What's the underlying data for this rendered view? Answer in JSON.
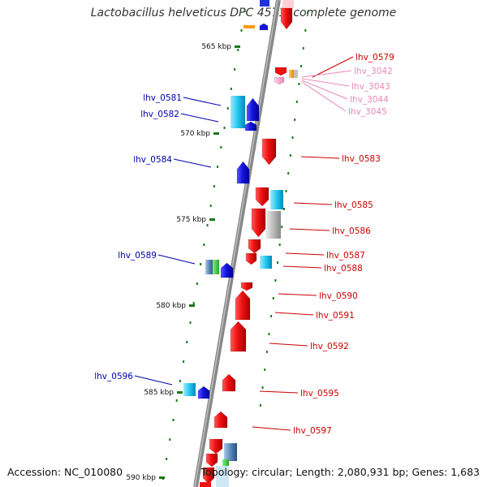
{
  "title": "Lactobacillus helveticus DPC 4571, complete genome",
  "footer": {
    "accession": "Accession: NC_010080",
    "summary": "Topology: circular; Length: 2,080,931 bp; Genes: 1,683"
  },
  "colors": {
    "forward_red": "#ee1111",
    "reverse_blue": "#1515dd",
    "label_red": "#cc0000",
    "label_blue": "#0000aa",
    "label_pink": "#e888b8",
    "cyan": "#22c8ee",
    "gray": "#bbbbbb",
    "tick_green": "#1a7a1a",
    "backbone": "#888888"
  },
  "scale_ticks": [
    {
      "label": "565 kbp"
    },
    {
      "label": "570 kbp"
    },
    {
      "label": "575 kbp"
    },
    {
      "label": "580 kbp"
    },
    {
      "label": "585 kbp"
    },
    {
      "label": "590 kbp"
    }
  ],
  "gene_labels_right": [
    {
      "label": "lhv_0579",
      "color": "red"
    },
    {
      "label": "lhv_3042",
      "color": "pink"
    },
    {
      "label": "lhv_3043",
      "color": "pink"
    },
    {
      "label": "lhv_3044",
      "color": "pink"
    },
    {
      "label": "lhv_3045",
      "color": "pink"
    },
    {
      "label": "lhv_0583",
      "color": "red"
    },
    {
      "label": "lhv_0585",
      "color": "red"
    },
    {
      "label": "lhv_0586",
      "color": "red"
    },
    {
      "label": "lhv_0587",
      "color": "red"
    },
    {
      "label": "lhv_0588",
      "color": "red"
    },
    {
      "label": "lhv_0590",
      "color": "red"
    },
    {
      "label": "lhv_0591",
      "color": "red"
    },
    {
      "label": "lhv_0592",
      "color": "red"
    },
    {
      "label": "lhv_0595",
      "color": "red"
    },
    {
      "label": "lhv_0597",
      "color": "red"
    }
  ],
  "gene_labels_left": [
    {
      "label": "lhv_0581",
      "color": "blue"
    },
    {
      "label": "lhv_0582",
      "color": "blue"
    },
    {
      "label": "lhv_0584",
      "color": "blue"
    },
    {
      "label": "lhv_0589",
      "color": "blue"
    },
    {
      "label": "lhv_0596",
      "color": "blue"
    }
  ]
}
